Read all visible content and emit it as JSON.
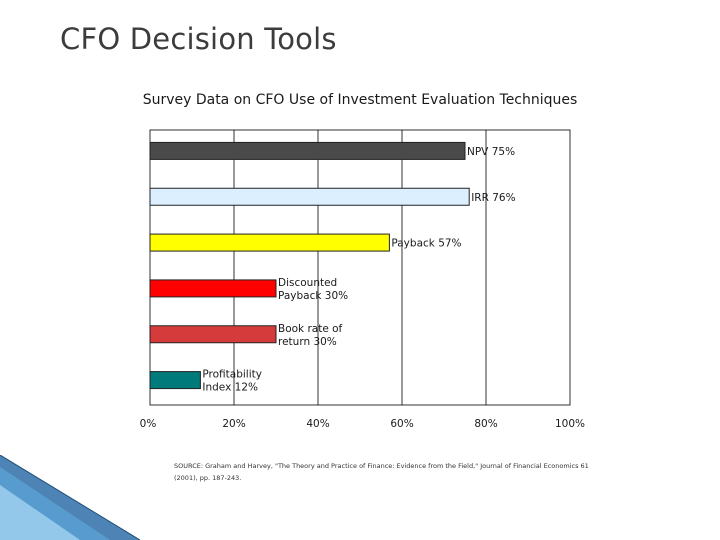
{
  "slide": {
    "title": "CFO Decision Tools"
  },
  "chart_data": {
    "type": "bar",
    "orientation": "horizontal",
    "title": "Survey Data on CFO Use of Investment Evaluation Techniques",
    "categories": [
      "NPV",
      "IRR",
      "Payback",
      "Discounted Payback",
      "Book rate of return",
      "Profitability Index"
    ],
    "values": [
      75,
      76,
      57,
      30,
      30,
      12
    ],
    "bar_labels": [
      [
        "NPV  75%"
      ],
      [
        "IRR  76%"
      ],
      [
        "Payback  57%"
      ],
      [
        "Discounted",
        "Payback  30%"
      ],
      [
        "Book rate of",
        "return  30%"
      ],
      [
        "Profitability",
        "Index  12%"
      ]
    ],
    "colors": [
      "#4a4a4a",
      "#dcefff",
      "#ffff00",
      "#ff0000",
      "#d63b3b",
      "#007a7a"
    ],
    "x_ticks": [
      "0%",
      "20%",
      "40%",
      "60%",
      "80%",
      "100%"
    ],
    "xlim": [
      0,
      100
    ],
    "unit": "%",
    "grid": true,
    "source": "SOURCE: Graham and Harvey, \"The Theory and Practice of Finance: Evidence from the Field,\" Journal of Financial Economics 61 (2001), pp. 187-243."
  }
}
